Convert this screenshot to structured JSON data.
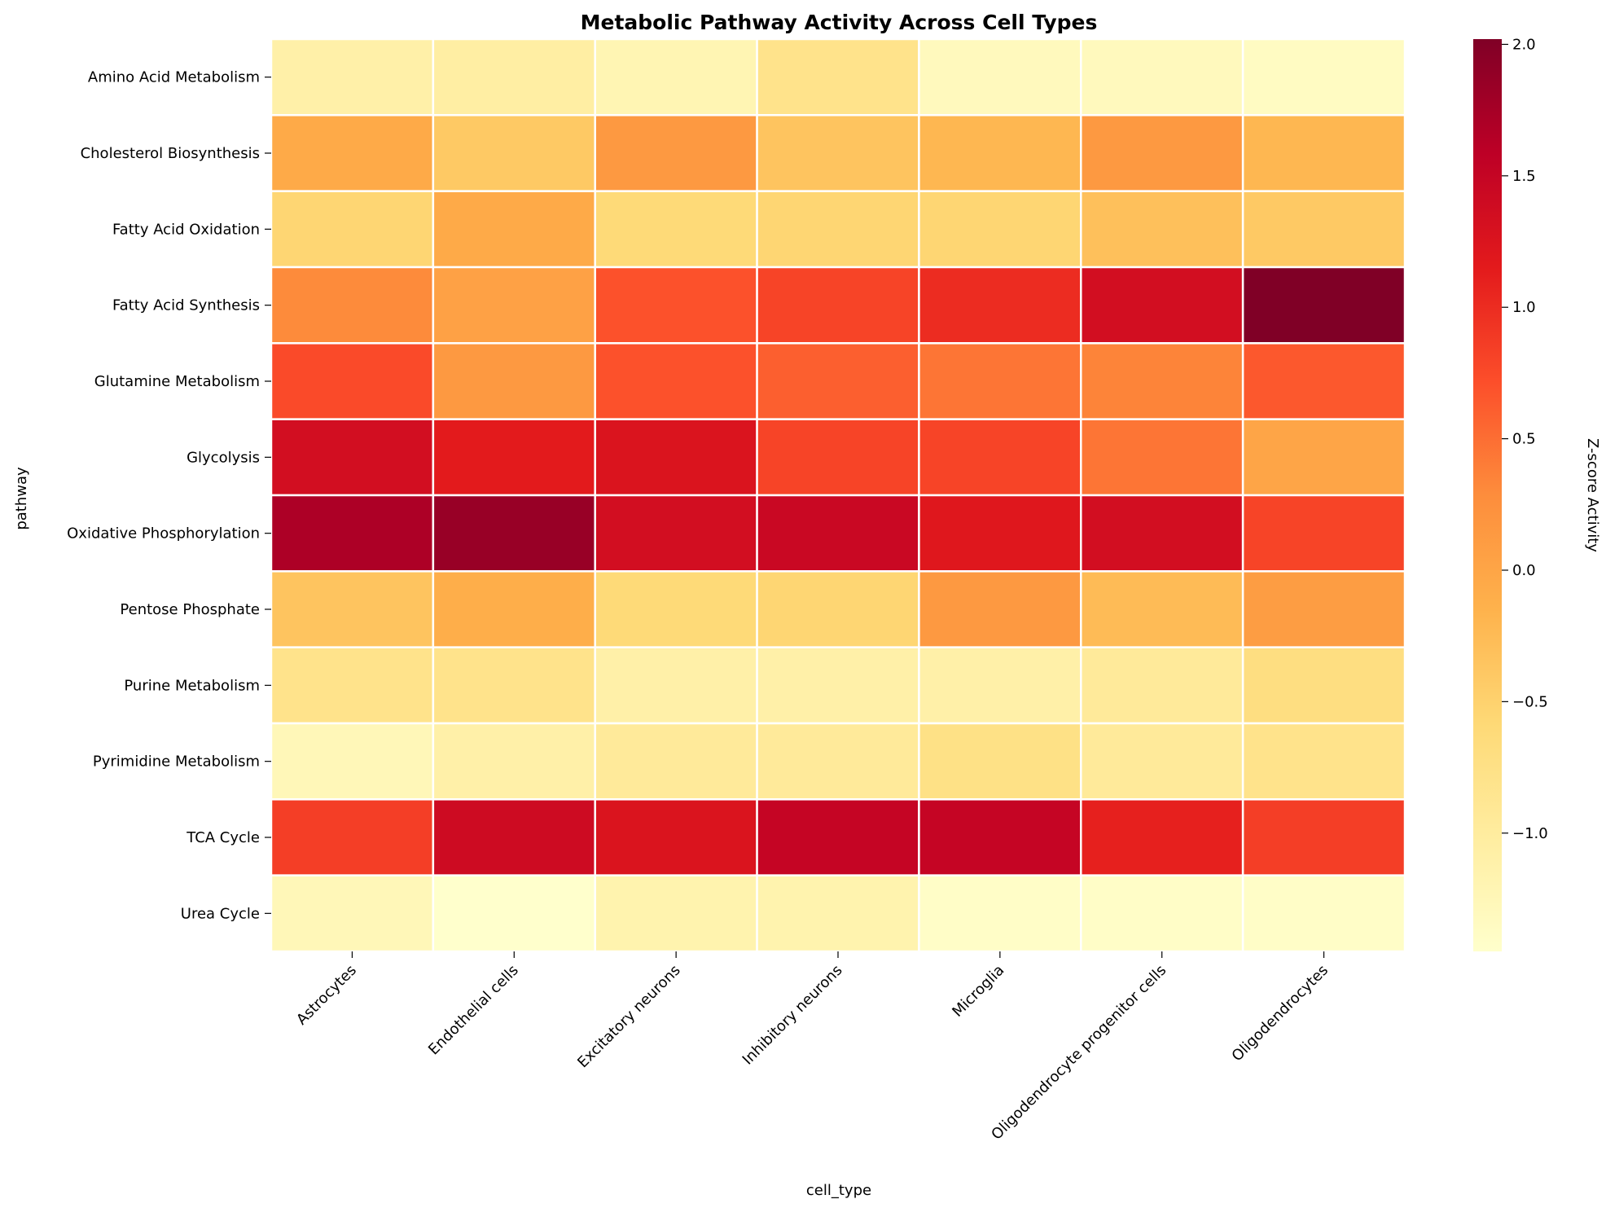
{
  "chart_data": {
    "type": "heatmap",
    "title": "Metabolic Pathway Activity Across Cell Types",
    "xlabel": "cell_type",
    "ylabel": "pathway",
    "colorbar_label": "Z-score Activity",
    "colormap": "YlOrRd",
    "vmin": -1.45,
    "vmax": 2.02,
    "colorbar_ticks": [
      {
        "value": -1.0,
        "label": "−1.0"
      },
      {
        "value": -0.5,
        "label": "−0.5"
      },
      {
        "value": 0.0,
        "label": "0.0"
      },
      {
        "value": 0.5,
        "label": "0.5"
      },
      {
        "value": 1.0,
        "label": "1.0"
      },
      {
        "value": 1.5,
        "label": "1.5"
      },
      {
        "value": 2.0,
        "label": "2.0"
      }
    ],
    "columns": [
      "Astrocytes",
      "Endothelial cells",
      "Excitatory neurons",
      "Inhibitory neurons",
      "Microglia",
      "Oligodendrocyte progenitor cells",
      "Oligodendrocytes"
    ],
    "rows": [
      "Amino Acid Metabolism",
      "Cholesterol Biosynthesis",
      "Fatty Acid Oxidation",
      "Fatty Acid Synthesis",
      "Glutamine Metabolism",
      "Glycolysis",
      "Oxidative Phosphorylation",
      "Pentose Phosphate",
      "Purine Metabolism",
      "Pyrimidine Metabolism",
      "TCA Cycle",
      "Urea Cycle"
    ],
    "values": [
      [
        -1.1,
        -1.05,
        -1.2,
        -0.8,
        -1.3,
        -1.3,
        -1.35
      ],
      [
        -0.05,
        -0.4,
        0.15,
        -0.35,
        -0.2,
        0.15,
        -0.2
      ],
      [
        -0.55,
        -0.05,
        -0.6,
        -0.55,
        -0.55,
        -0.3,
        -0.4
      ],
      [
        0.3,
        0.05,
        0.7,
        0.8,
        1.0,
        1.35,
        2.02
      ],
      [
        0.75,
        0.15,
        0.7,
        0.6,
        0.45,
        0.35,
        0.65
      ],
      [
        1.35,
        1.15,
        1.25,
        0.8,
        0.8,
        0.45,
        0.0
      ],
      [
        1.7,
        1.85,
        1.35,
        1.45,
        1.2,
        1.35,
        0.8
      ],
      [
        -0.35,
        -0.1,
        -0.6,
        -0.55,
        0.15,
        -0.25,
        0.1
      ],
      [
        -0.8,
        -0.8,
        -1.1,
        -1.1,
        -1.1,
        -0.95,
        -0.7
      ],
      [
        -1.25,
        -1.1,
        -0.95,
        -0.95,
        -0.75,
        -0.95,
        -0.8
      ],
      [
        0.85,
        1.4,
        1.25,
        1.5,
        1.5,
        1.1,
        0.85
      ],
      [
        -1.25,
        -1.45,
        -1.15,
        -1.15,
        -1.4,
        -1.4,
        -1.4
      ]
    ]
  }
}
